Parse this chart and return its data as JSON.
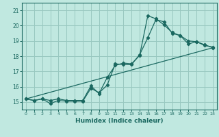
{
  "xlabel": "Humidex (Indice chaleur)",
  "bg_color": "#c0e8e0",
  "grid_color": "#98c8c0",
  "line_color": "#1a6860",
  "xmin": -0.5,
  "xmax": 23.5,
  "ymin": 14.5,
  "ymax": 21.5,
  "yticks": [
    15,
    16,
    17,
    18,
    19,
    20,
    21
  ],
  "xticks": [
    0,
    1,
    2,
    3,
    4,
    5,
    6,
    7,
    8,
    9,
    10,
    11,
    12,
    13,
    14,
    15,
    16,
    17,
    18,
    19,
    20,
    21,
    22,
    23
  ],
  "line1_x": [
    0,
    1,
    2,
    3,
    4,
    5,
    6,
    7,
    8,
    9,
    10,
    11,
    12,
    13,
    14,
    15,
    16,
    17,
    18,
    19,
    20,
    21,
    22,
    23
  ],
  "line1_y": [
    15.2,
    15.1,
    15.2,
    14.9,
    15.1,
    15.05,
    15.05,
    15.05,
    15.9,
    15.6,
    16.1,
    17.5,
    17.45,
    17.45,
    18.1,
    19.2,
    20.4,
    20.25,
    19.5,
    19.35,
    19.0,
    18.95,
    18.7,
    18.6
  ],
  "line2_x": [
    0,
    1,
    2,
    3,
    4,
    5,
    6,
    7,
    8,
    9,
    10,
    11,
    12,
    13,
    14,
    15,
    16,
    17,
    18,
    19,
    20,
    21,
    22,
    23
  ],
  "line2_y": [
    15.2,
    15.1,
    15.2,
    15.1,
    15.2,
    15.1,
    15.1,
    15.1,
    16.05,
    15.55,
    16.6,
    17.4,
    17.55,
    17.5,
    18.05,
    20.65,
    20.45,
    20.05,
    19.55,
    19.35,
    18.8,
    18.95,
    18.75,
    18.55
  ],
  "line3_x": [
    0,
    23
  ],
  "line3_y": [
    15.2,
    18.55
  ]
}
